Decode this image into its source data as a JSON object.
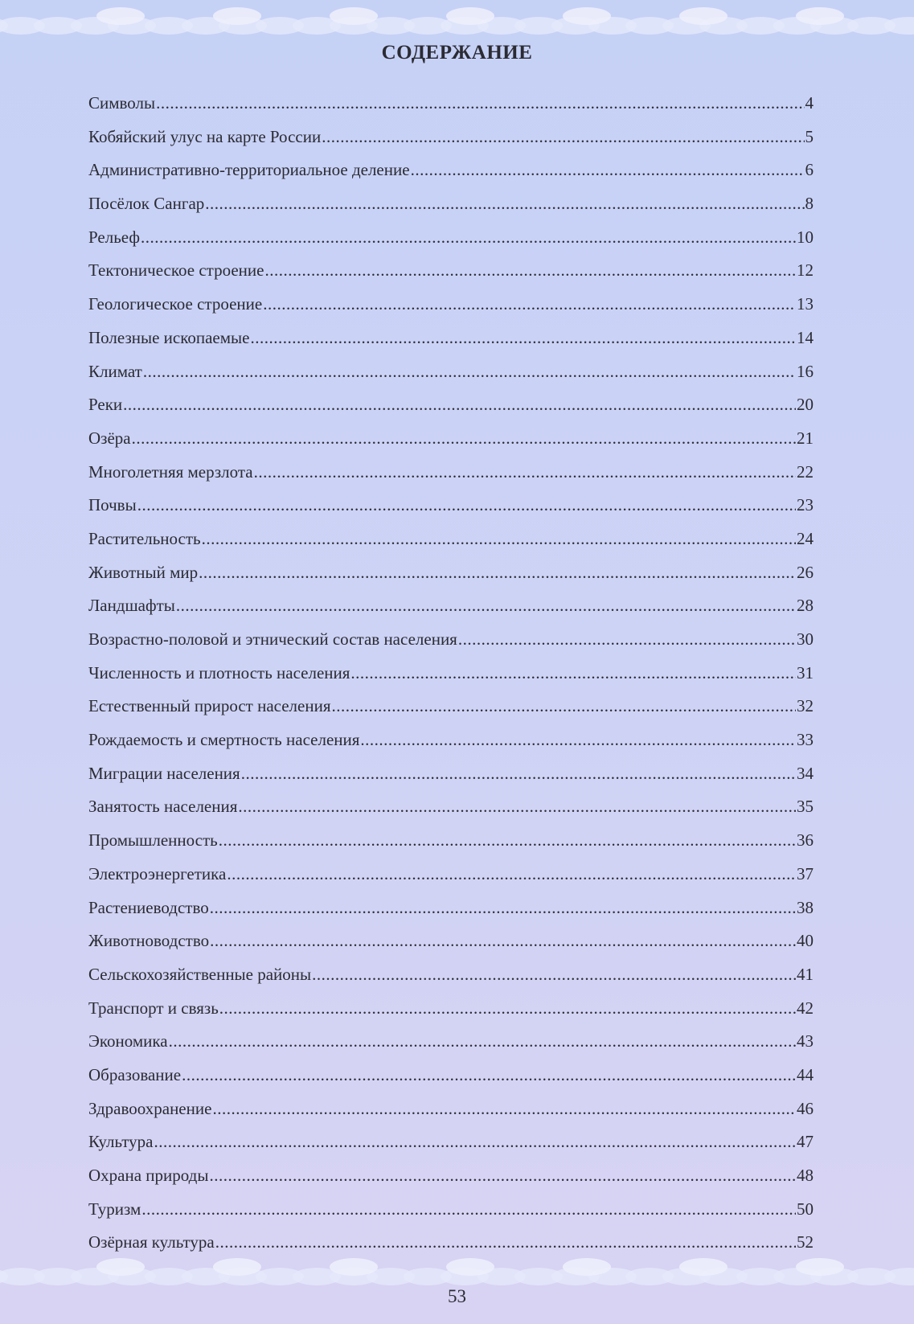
{
  "page": {
    "title": "СОДЕРЖАНИЕ",
    "page_number": "53",
    "background_color": "#c9d2f5"
  },
  "toc": [
    {
      "label": "Символы",
      "page": "4"
    },
    {
      "label": "Кобяйский улус на карте России",
      "page": "5"
    },
    {
      "label": "Административно-территориальное деление",
      "page": "6"
    },
    {
      "label": "Посёлок Сангар",
      "page": "8"
    },
    {
      "label": "Рельеф",
      "page": "10"
    },
    {
      "label": "Тектоническое строение",
      "page": "12"
    },
    {
      "label": "Геологическое строение",
      "page": "13"
    },
    {
      "label": "Полезные ископаемые",
      "page": "14"
    },
    {
      "label": "Климат",
      "page": "16"
    },
    {
      "label": "Реки",
      "page": "20"
    },
    {
      "label": "Озёра",
      "page": "21"
    },
    {
      "label": "Многолетняя мерзлота",
      "page": "22"
    },
    {
      "label": "Почвы",
      "page": "23"
    },
    {
      "label": "Растительность",
      "page": "24"
    },
    {
      "label": "Животный мир",
      "page": "26"
    },
    {
      "label": "Ландшафты",
      "page": "28"
    },
    {
      "label": "Возрастно-половой и этнический состав населения",
      "page": "30"
    },
    {
      "label": "Численность и плотность населения",
      "page": "31"
    },
    {
      "label": "Естественный прирост населения",
      "page": "32"
    },
    {
      "label": "Рождаемость и смертность населения",
      "page": "33"
    },
    {
      "label": "Миграции населения",
      "page": "34"
    },
    {
      "label": "Занятость населения",
      "page": "35"
    },
    {
      "label": "Промышленность",
      "page": "36"
    },
    {
      "label": "Электроэнергетика",
      "page": "37"
    },
    {
      "label": "Растениеводство",
      "page": "38"
    },
    {
      "label": "Животноводство",
      "page": "40"
    },
    {
      "label": "Сельскохозяйственные районы",
      "page": "41"
    },
    {
      "label": "Транспорт и связь",
      "page": "42"
    },
    {
      "label": "Экономика",
      "page": "43"
    },
    {
      "label": "Образование",
      "page": "44"
    },
    {
      "label": "Здравоохранение",
      "page": "46"
    },
    {
      "label": "Культура",
      "page": "47"
    },
    {
      "label": "Охрана природы",
      "page": "48"
    },
    {
      "label": "Туризм",
      "page": "50"
    },
    {
      "label": "Озёрная культура",
      "page": "52"
    }
  ]
}
